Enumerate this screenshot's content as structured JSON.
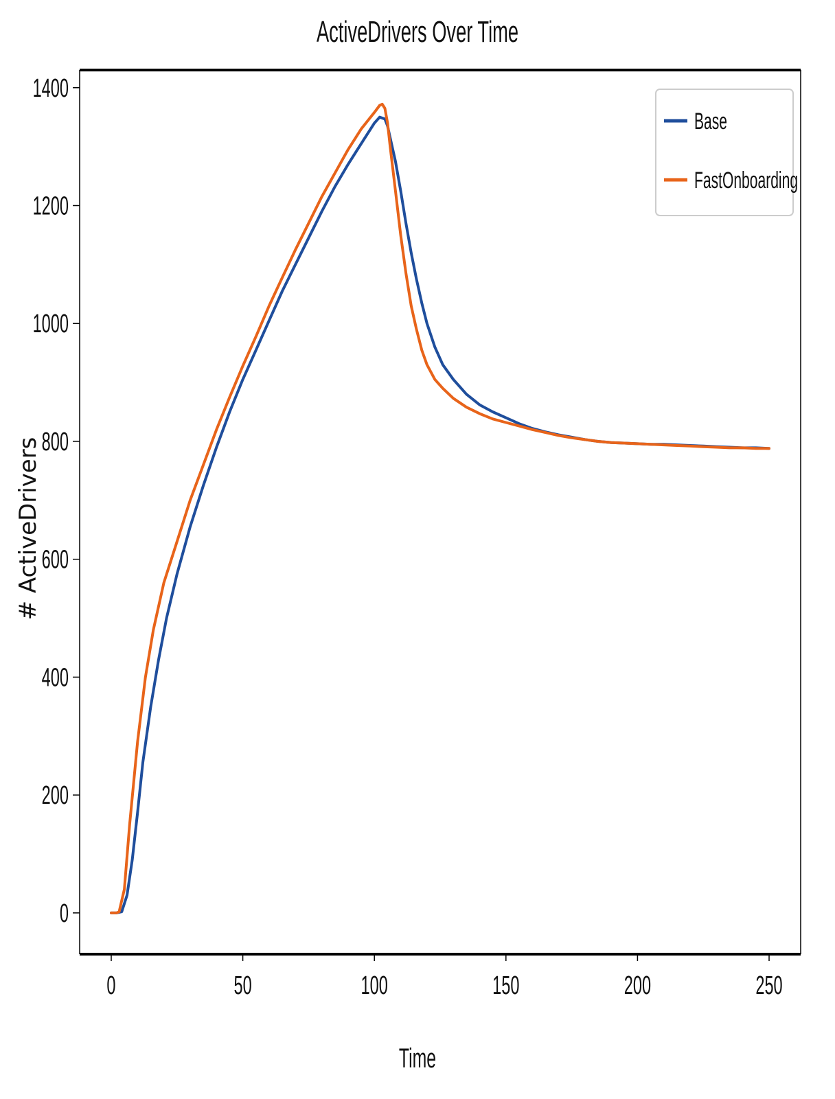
{
  "chart_data": {
    "type": "line",
    "title": "ActiveDrivers Over Time",
    "xlabel": "Time",
    "ylabel": "# ActiveDrivers",
    "xlim": [
      -12,
      262
    ],
    "ylim": [
      -70,
      1430
    ],
    "xticks": [
      0,
      50,
      100,
      150,
      200,
      250
    ],
    "yticks": [
      0,
      200,
      400,
      600,
      800,
      1000,
      1200,
      1400
    ],
    "grid": false,
    "legend_position": "top-right",
    "series": [
      {
        "name": "Base",
        "color": "#1f4e9c",
        "x": [
          0,
          2,
          4,
          6,
          8,
          10,
          12,
          15,
          18,
          21,
          25,
          30,
          35,
          40,
          45,
          50,
          55,
          60,
          65,
          70,
          75,
          80,
          85,
          90,
          95,
          100,
          102,
          104,
          105,
          106,
          108,
          110,
          112,
          114,
          116,
          118,
          120,
          123,
          126,
          130,
          135,
          140,
          145,
          150,
          155,
          160,
          165,
          170,
          175,
          180,
          185,
          190,
          195,
          200,
          205,
          210,
          215,
          220,
          225,
          230,
          235,
          240,
          245,
          250
        ],
        "y": [
          0,
          0,
          2,
          30,
          90,
          170,
          255,
          350,
          430,
          500,
          575,
          655,
          725,
          790,
          850,
          905,
          955,
          1005,
          1055,
          1100,
          1145,
          1190,
          1232,
          1270,
          1305,
          1340,
          1350,
          1347,
          1335,
          1315,
          1275,
          1225,
          1170,
          1120,
          1075,
          1035,
          1000,
          960,
          930,
          905,
          880,
          862,
          850,
          840,
          830,
          822,
          816,
          811,
          807,
          803,
          800,
          798,
          797,
          796,
          795,
          795,
          794,
          793,
          792,
          791,
          790,
          789,
          789,
          788
        ]
      },
      {
        "name": "FastOnboarding",
        "color": "#e8641a",
        "x": [
          0,
          2,
          3,
          5,
          7,
          10,
          13,
          16,
          20,
          25,
          30,
          35,
          40,
          45,
          50,
          55,
          60,
          65,
          70,
          75,
          80,
          85,
          90,
          95,
          100,
          102,
          103,
          104,
          105,
          106,
          108,
          110,
          112,
          114,
          116,
          118,
          120,
          123,
          126,
          130,
          135,
          140,
          145,
          150,
          155,
          160,
          165,
          170,
          175,
          180,
          185,
          190,
          195,
          200,
          205,
          210,
          215,
          220,
          225,
          230,
          235,
          240,
          245,
          250
        ],
        "y": [
          0,
          0,
          2,
          40,
          150,
          290,
          400,
          480,
          560,
          630,
          700,
          760,
          820,
          875,
          928,
          978,
          1030,
          1078,
          1125,
          1170,
          1215,
          1255,
          1295,
          1330,
          1358,
          1370,
          1372,
          1365,
          1340,
          1300,
          1225,
          1150,
          1085,
          1030,
          990,
          955,
          930,
          905,
          890,
          873,
          858,
          847,
          838,
          832,
          826,
          820,
          815,
          810,
          806,
          803,
          800,
          798,
          797,
          796,
          795,
          794,
          793,
          792,
          791,
          790,
          789,
          789,
          788,
          788
        ]
      }
    ]
  }
}
